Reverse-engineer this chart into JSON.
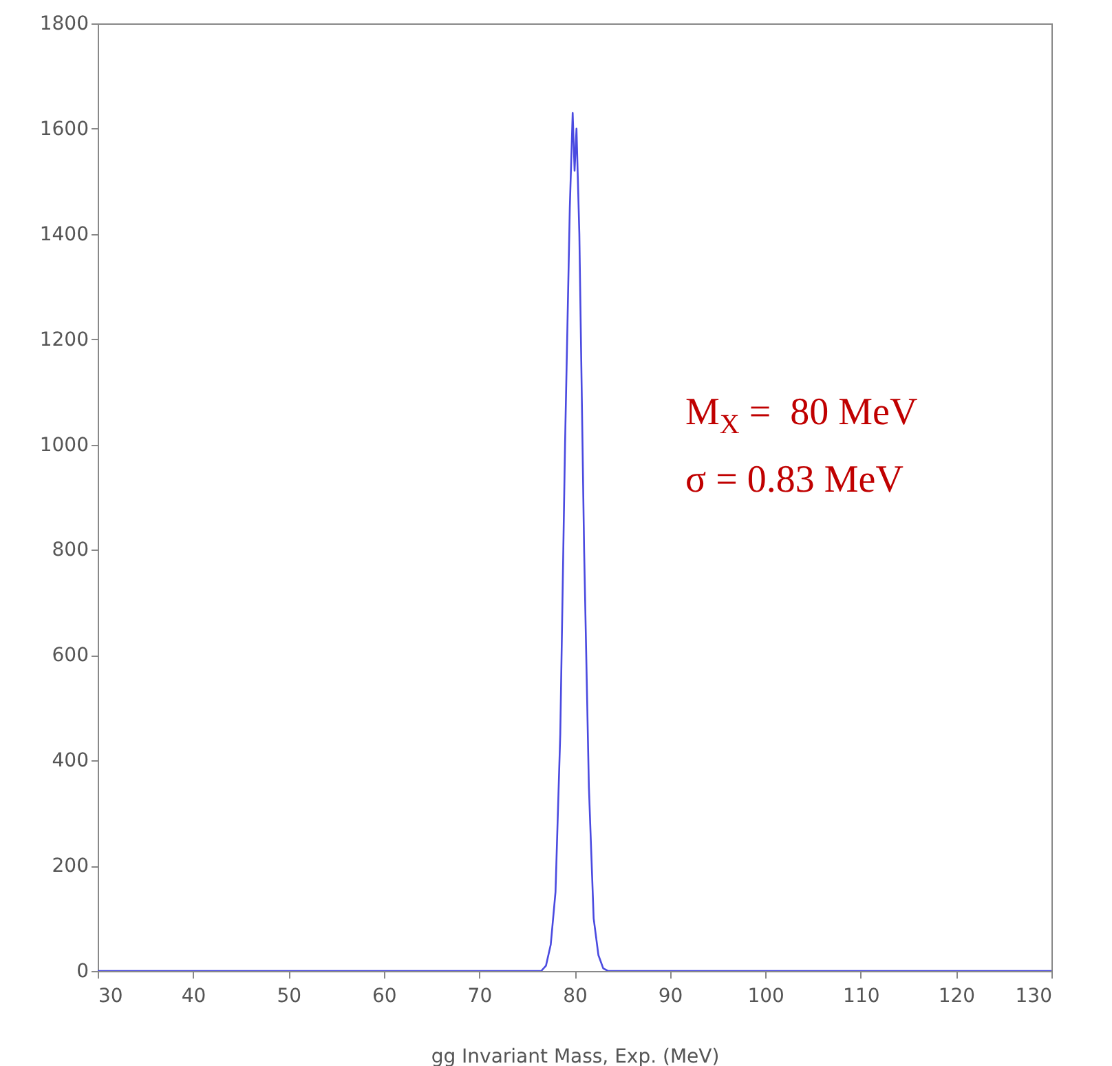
{
  "chart_data": {
    "type": "line",
    "xlabel": "gg Invariant Mass, Exp. (MeV)",
    "x": [
      30,
      76.5,
      77,
      77.5,
      78,
      78.5,
      79,
      79.5,
      79.8,
      80,
      80.2,
      80.5,
      81,
      81.5,
      82,
      82.5,
      83,
      83.5,
      130
    ],
    "series": [
      {
        "color": "#4a4ae0",
        "values": [
          0,
          0,
          10,
          50,
          150,
          450,
          1000,
          1450,
          1630,
          1520,
          1600,
          1400,
          800,
          350,
          100,
          30,
          5,
          0,
          0
        ]
      }
    ],
    "xlim": [
      30,
      130
    ],
    "xticks": [
      30,
      40,
      50,
      60,
      70,
      80,
      90,
      100,
      110,
      120,
      130
    ],
    "ylim": [
      0,
      1800
    ],
    "yticks": [
      0,
      200,
      400,
      600,
      800,
      1000,
      1200,
      1400,
      1600,
      1800
    ],
    "grid": false,
    "marker": "none",
    "line_style": "solid",
    "annotations": [
      "M$_{X}$ =  80 MeV",
      "σ = 0.83 MeV"
    ]
  }
}
